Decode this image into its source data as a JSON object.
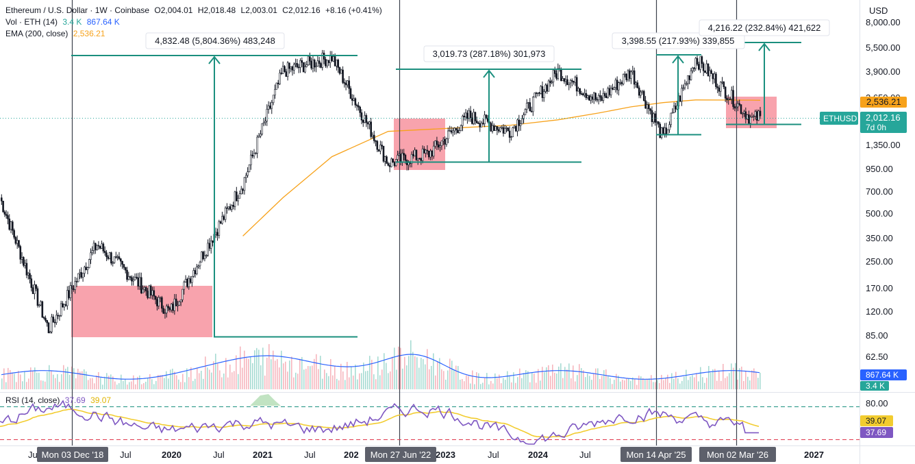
{
  "header": {
    "symbol_line": "Ethereum / U.S. Dollar · 1W · Coinbase",
    "open": "O2,004.01",
    "high": "H2,018.48",
    "low": "L2,003.01",
    "close": "C2,012.16",
    "change": "+8.16 (+0.41%)",
    "vol_label": "Vol · ETH (14)",
    "vol_value": "3.4 K",
    "vol_ma": "867.64 K",
    "ema_label": "EMA (200, close)",
    "ema_value": "2,536.21",
    "rsi_label": "RSI (14, close)",
    "rsi_value": "37.69",
    "rsi_ma": "39.07"
  },
  "price_axis": {
    "currency": "USD",
    "ticks": [
      "8,000.00",
      "5,500.00",
      "3,900.00",
      "2,650.00",
      "1,350.00",
      "950.00",
      "700.00",
      "500.00",
      "350.00",
      "250.00",
      "170.00",
      "120.00",
      "85.00",
      "62.50"
    ],
    "tags": {
      "ema": "2,536.21",
      "symbol": "ETHUSD",
      "last": "2,012.16",
      "countdown": "7d 0h",
      "vol_ma": "867.64 K",
      "vol": "3.4 K"
    }
  },
  "rsi_axis": {
    "ticks": [
      "80.00"
    ],
    "tags": {
      "ma": "39.07",
      "rsi": "37.69"
    }
  },
  "time_axis": {
    "labels": [
      "Ju",
      "Jul",
      "2020",
      "Jul",
      "2021",
      "Jul",
      "202",
      "2023",
      "Jul",
      "2024",
      "Jul",
      "2027"
    ],
    "markers": [
      "Mon 03 Dec '18",
      "Mon 27 Jun '22",
      "Mon 14 Apr '25",
      "Mon 02 Mar '26"
    ]
  },
  "measurements": [
    {
      "label": "4,832.48 (5,804.36%) 483,248"
    },
    {
      "label": "3,019.73 (287.18%) 301,973"
    },
    {
      "label": "3,398.55 (217.93%) 339,855"
    },
    {
      "label": "4,216.22 (232.84%) 421,622"
    }
  ],
  "colors": {
    "up": "#131722",
    "ema": "#f7a21b",
    "teal": "#1a8f7e",
    "box": "#f36b7a",
    "rsi": "#7e57c2",
    "rsi_ma": "#f2cc2f",
    "vol_ma": "#2962ff",
    "last_tag": "#26a69a"
  },
  "chart_data": {
    "type": "line",
    "title": "Ethereum / U.S. Dollar · 1W · Coinbase",
    "yscale": "log",
    "ylim": [
      55,
      9000
    ],
    "x": [
      "2018-06",
      "2018-12",
      "2019-06",
      "2020-03",
      "2020-12",
      "2021-05",
      "2021-11",
      "2022-06",
      "2022-11",
      "2023-04",
      "2023-09",
      "2024-03",
      "2024-08",
      "2024-12",
      "2025-04",
      "2025-08",
      "2026-03",
      "2026-04"
    ],
    "series": [
      {
        "name": "ETHUSD",
        "values": [
          600,
          85,
          300,
          110,
          740,
          3900,
          4800,
          1000,
          1150,
          2000,
          1600,
          3900,
          2500,
          3900,
          1450,
          4700,
          1900,
          2012
        ]
      },
      {
        "name": "EMA (200, close)",
        "values": [
          null,
          null,
          null,
          null,
          340,
          600,
          1100,
          1600,
          1650,
          1700,
          1750,
          1900,
          2100,
          2300,
          2450,
          2550,
          2540,
          2536
        ]
      }
    ],
    "rsi": {
      "name": "RSI (14, close)",
      "last": 37.69,
      "ma": 39.07,
      "upper": 70,
      "lower": 30
    },
    "legend": "top-left",
    "grid": false
  }
}
